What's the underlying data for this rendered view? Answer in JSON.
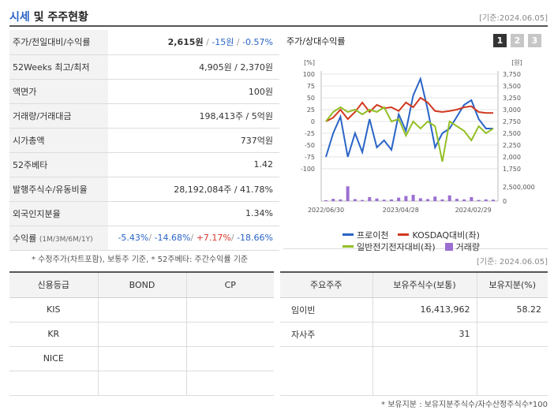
{
  "header": {
    "title_hl": "시세",
    "title_rest": " 및 주주현황",
    "date": "[기준:2024.06.05]"
  },
  "price_rows": [
    {
      "label": "주가/전일대비/수익률",
      "price": "2,615원",
      "sep1": " / ",
      "change": "-15원",
      "sep2": " / ",
      "rate": "-0.57%"
    },
    {
      "label": "52Weeks 최고/최저",
      "value": "4,905원 / 2,370원"
    },
    {
      "label": "액면가",
      "value": "100원"
    },
    {
      "label": "거래량/거래대금",
      "value": "198,413주 / 5억원"
    },
    {
      "label": "시가총액",
      "value": "737억원"
    },
    {
      "label": "52주베타",
      "value": "1.42"
    },
    {
      "label": "발행주식수/유동비율",
      "value": "28,192,084주 / 41.78%"
    },
    {
      "label": "외국인지분율",
      "value": "1.34%"
    },
    {
      "label": "수익률",
      "sub": "(1M/3M/6M/1Y)",
      "r1": "-5.43%",
      "r2": "-14.68%",
      "r3": "+7.17%",
      "r4": "-18.66%",
      "s": "/ "
    }
  ],
  "notes": {
    "price_note": "* 수정주가(차트포함), 보통주 기준, * 52주베타: 주간수익률 기준",
    "holders_date": "[기준: 2024.06.05]",
    "holders_note": "* 보유지분 : 보유지분주식수/자수산정주식수*100"
  },
  "chart": {
    "title": "주가/상대수익률",
    "tabs": [
      "1",
      "2",
      "3"
    ],
    "legend": {
      "price": "프로이천",
      "kosdaq": "KOSDAQ대비(좌)",
      "sector": "일반전기전자대비(좌)",
      "volume": "거래량"
    }
  },
  "chart_data": {
    "type": "line",
    "left_axis": {
      "label": "[%]",
      "ticks": [
        "100",
        "75",
        "50",
        "25",
        "0",
        "-25",
        "-50",
        "-75",
        "-100"
      ],
      "range": [
        -100,
        100
      ]
    },
    "right_axis": {
      "label": "[원]",
      "ticks": [
        "3,750",
        "3,500",
        "3,250",
        "3,000",
        "2,750",
        "2,500",
        "2,250",
        "2,000",
        "1,750"
      ],
      "range": [
        1750,
        3750
      ]
    },
    "volume_axis": {
      "ticks": [
        "2,500,000",
        "0"
      ],
      "range": [
        0,
        2500000
      ]
    },
    "x_ticks": [
      "2022/06/30",
      "2023/04/28",
      "2024/02/29"
    ],
    "series": [
      {
        "name": "프로이천",
        "axis": "right",
        "color": "#2a64c6",
        "values": [
          2000,
          2500,
          2850,
          2000,
          2500,
          2100,
          2800,
          2200,
          2350,
          2150,
          2900,
          2550,
          3300,
          3650,
          3000,
          2200,
          2500,
          2600,
          2850,
          3100,
          3200,
          2800,
          2600,
          2600
        ]
      },
      {
        "name": "KOSDAQ대비(좌)",
        "axis": "left",
        "color": "#d2391f",
        "values": [
          0,
          8,
          25,
          5,
          20,
          40,
          20,
          35,
          28,
          30,
          22,
          40,
          30,
          50,
          40,
          22,
          20,
          22,
          25,
          30,
          32,
          20,
          18,
          18
        ]
      },
      {
        "name": "일반전기전자대비(좌)",
        "axis": "left",
        "color": "#93bf26",
        "values": [
          0,
          20,
          30,
          20,
          25,
          15,
          25,
          20,
          30,
          0,
          5,
          -30,
          0,
          -15,
          0,
          -10,
          -85,
          0,
          -10,
          -20,
          -40,
          -10,
          -25,
          -15
        ]
      },
      {
        "name": "거래량",
        "axis": "volume",
        "color": "#9b6fd1",
        "values": [
          150000,
          400000,
          300000,
          2600000,
          350000,
          200000,
          700000,
          450000,
          250000,
          300000,
          600000,
          900000,
          1100000,
          500000,
          350000,
          800000,
          300000,
          1000000,
          400000,
          300000,
          700000,
          200000,
          300000,
          250000
        ]
      }
    ]
  },
  "credit": {
    "headers": [
      "신용등급",
      "BOND",
      "CP"
    ],
    "rows": [
      [
        "KIS",
        "",
        ""
      ],
      [
        "KR",
        "",
        ""
      ],
      [
        "NICE",
        "",
        ""
      ],
      [
        "",
        "",
        ""
      ]
    ]
  },
  "holders": {
    "headers": [
      "주요주주",
      "보유주식수(보통)",
      "보유지분(%)"
    ],
    "rows": [
      [
        "임이빈",
        "16,413,962",
        "58.22"
      ],
      [
        "자사주",
        "31",
        ""
      ]
    ]
  }
}
